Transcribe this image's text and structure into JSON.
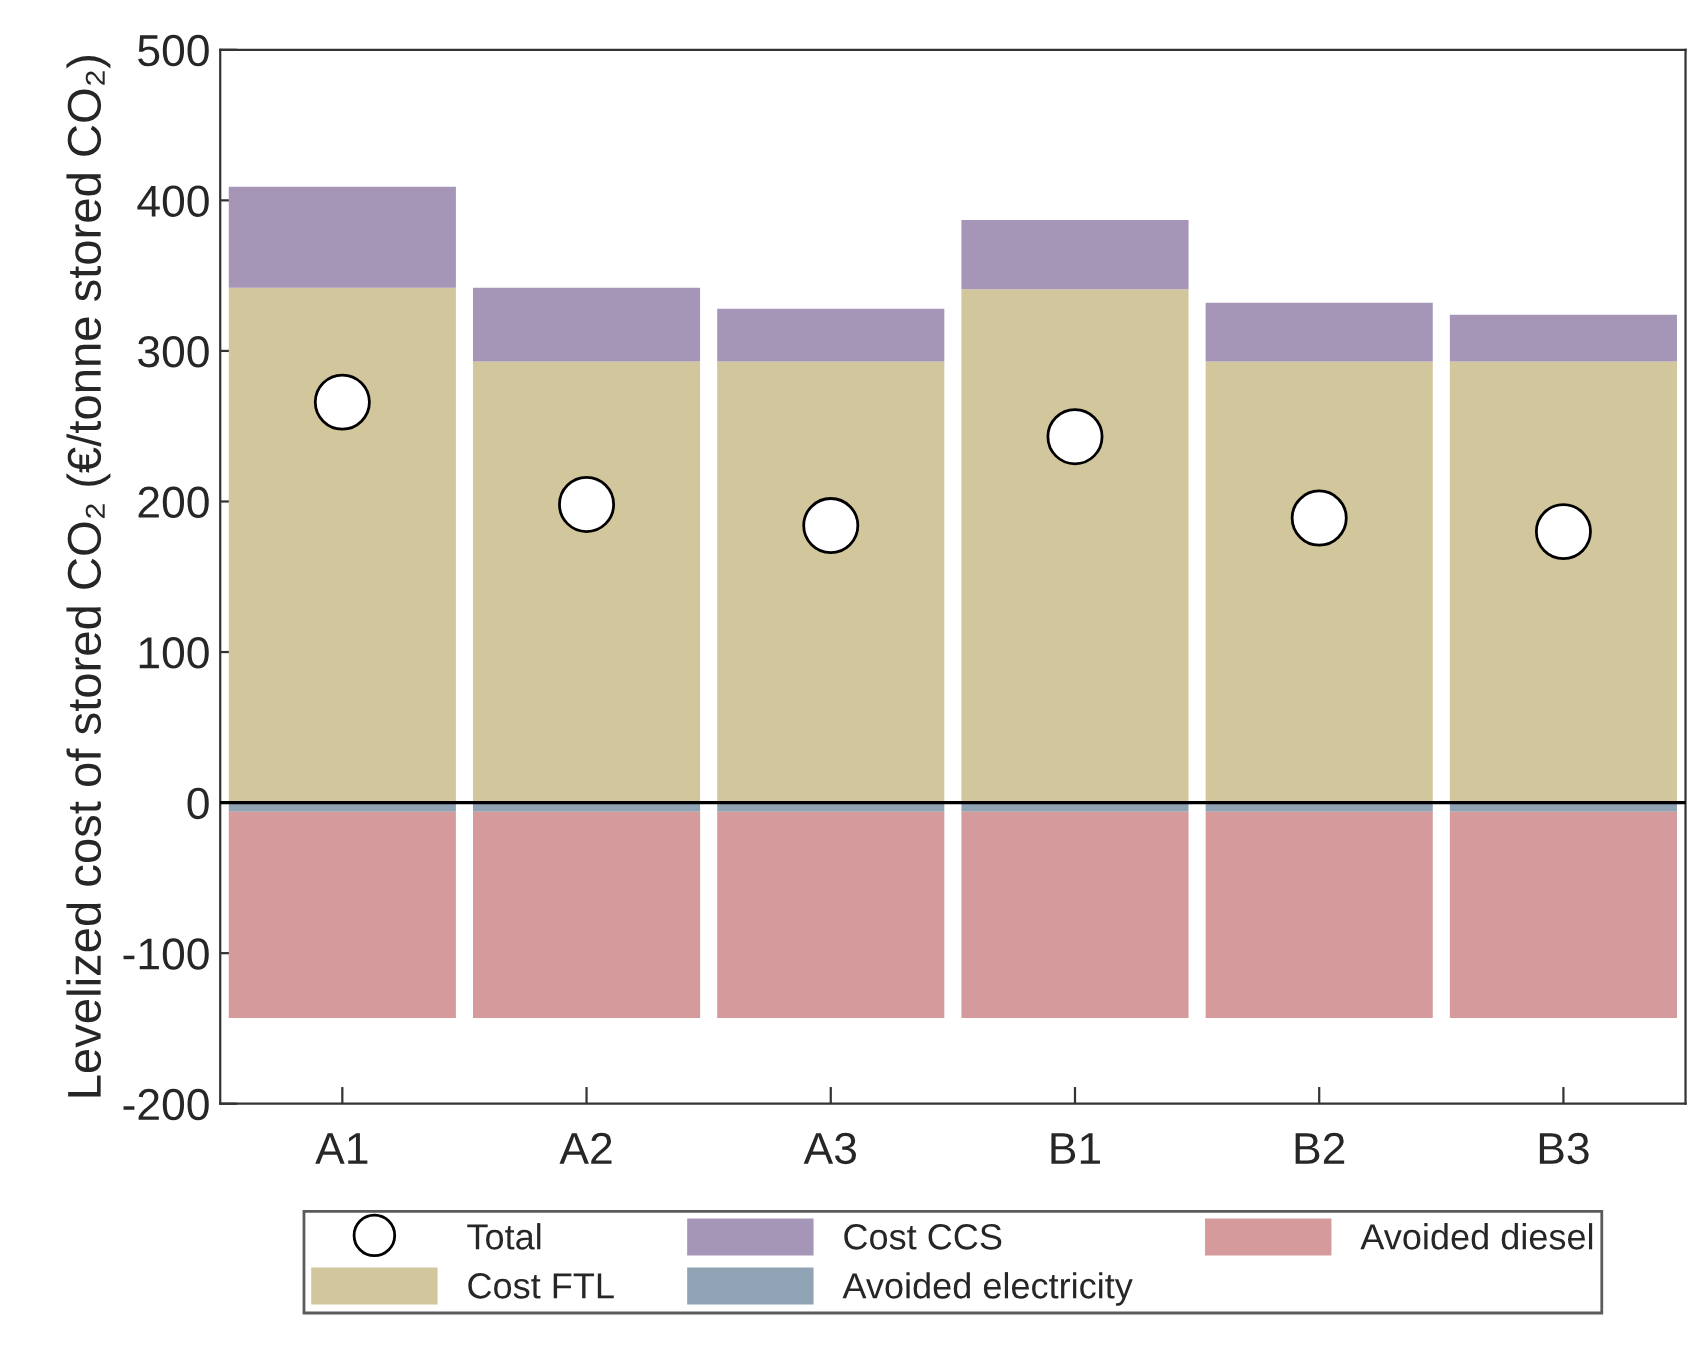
{
  "chart_data": {
    "type": "bar",
    "stacked": true,
    "ylabel": "Levelized cost of stored CO₂ (€/tonne stored CO₂)",
    "categories": [
      "A1",
      "A2",
      "A3",
      "B1",
      "B2",
      "B3"
    ],
    "series": [
      {
        "name": "Total",
        "type": "scatter",
        "color": "#ffffff",
        "values": [
          266,
          198,
          184,
          243,
          189,
          180
        ]
      },
      {
        "name": "Cost FTL",
        "color": "#d1c69c",
        "values": [
          342,
          293,
          293,
          341,
          293,
          293
        ]
      },
      {
        "name": "Cost CCS",
        "color": "#a596b8",
        "values": [
          67,
          49,
          35,
          46,
          39,
          31
        ]
      },
      {
        "name": "Avoided electricity",
        "color": "#8fa3b4",
        "values": [
          -6,
          -6,
          -6,
          -6,
          -6,
          -6
        ]
      },
      {
        "name": "Avoided diesel",
        "color": "#d49a9c",
        "values": [
          -137,
          -137,
          -137,
          -137,
          -137,
          -137
        ]
      }
    ],
    "ylim": [
      -200,
      500
    ],
    "yticks": [
      -200,
      -100,
      0,
      100,
      200,
      300,
      400,
      500
    ],
    "ref_lines": [
      {
        "axis": "y",
        "value": 0,
        "color": "#000000"
      }
    ],
    "marker": "circle",
    "grid": false,
    "legend": "bottom"
  }
}
